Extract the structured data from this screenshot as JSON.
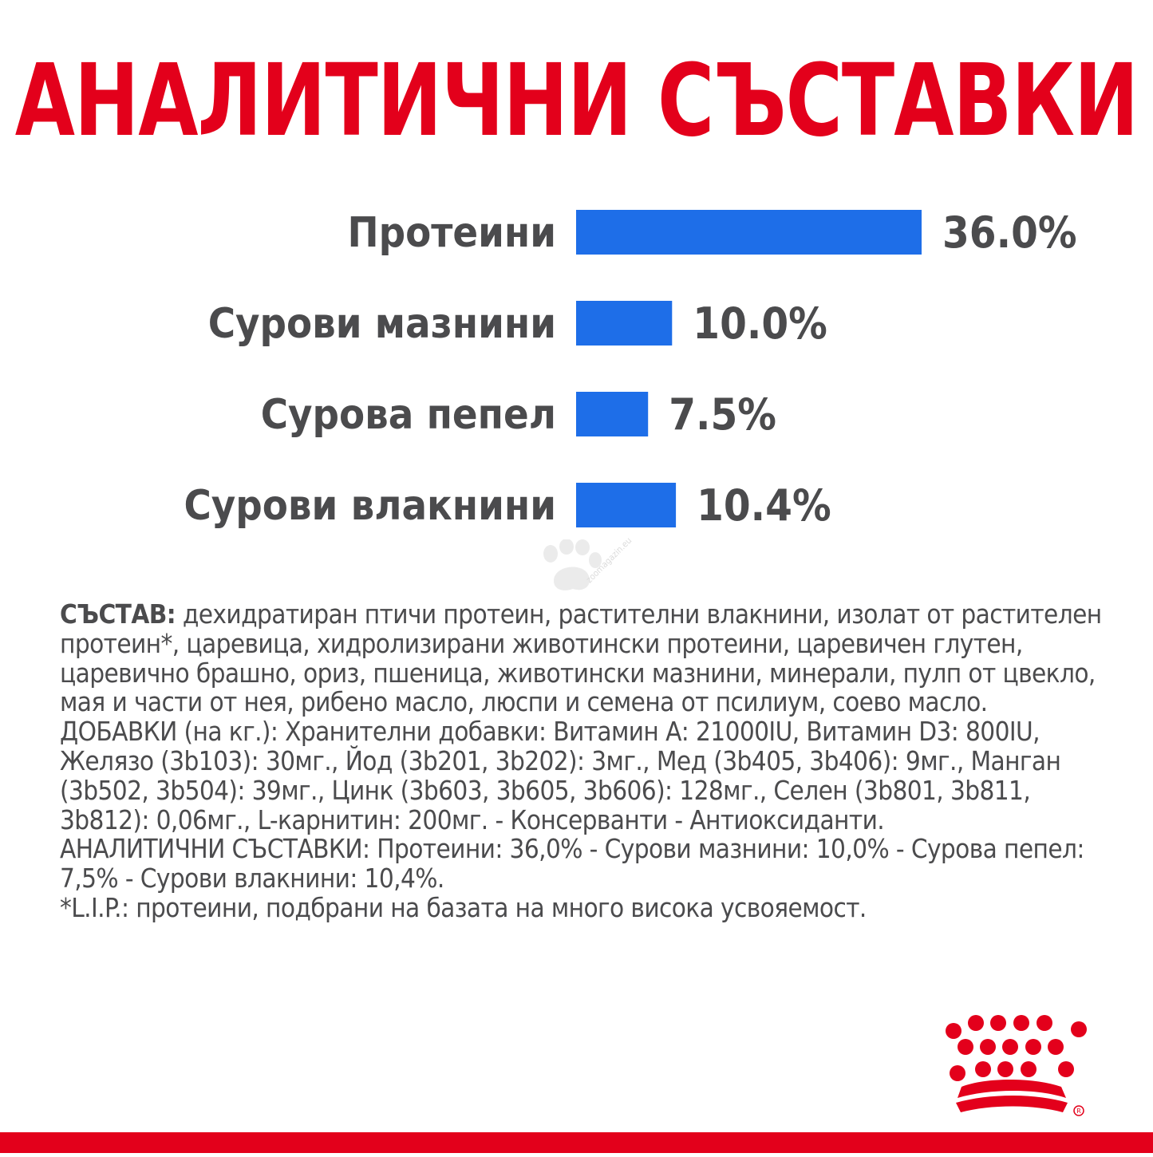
{
  "title": "АНАЛИТИЧНИ СЪСТАВКИ",
  "chart_data": {
    "type": "bar",
    "orientation": "horizontal",
    "categories": [
      "Протеини",
      "Сурови мазнини",
      "Сурова пепел",
      "Сурови влакнини"
    ],
    "values": [
      36.0,
      10.0,
      7.5,
      10.4
    ],
    "value_labels": [
      "36.0%",
      "10.0%",
      "7.5%",
      "10.4%"
    ],
    "unit": "%",
    "bar_color": "#1e6ee8",
    "label_color": "#4b4b4d",
    "xlim": [
      0,
      36.0
    ],
    "grid": false,
    "legend": "none"
  },
  "composition": {
    "heading": "СЪСТАВ:",
    "ingredients": " дехидратиран птичи протеин, растителни влакнини, изолат от растителен протеин*, царевица, хидролизирани животински протеини, царевичен глутен, царевично брашно, ориз, пшеница, животински мазнини, минерали, пулп от цвекло, мая и части от нея, рибено масло, люспи и семена от псилиум, соево масло.",
    "additives": "ДОБАВКИ (на кг.): Хранителни добавки: Витамин А: 21000IU, Витамин D3: 800IU, Желязо (3b103): 30мг., Йод (3b201, 3b202): 3мг., Мед (3b405, 3b406): 9мг., Манган (3b502, 3b504): 39мг., Цинк (3b603, 3b605, 3b606): 128мг., Селен (3b801, 3b811, 3b812): 0,06мг., L-карнитин: 200мг. - Консерванти - Антиоксиданти.",
    "analytical": "АНАЛИТИЧНИ СЪСТАВКИ: Протеини: 36,0% - Сурови мазнини: 10,0% - Сурова пепел: 7,5% - Сурови влакнини: 10,4%.",
    "footnote": "*L.I.P.: протеини, подбрани на базата на много висока усвояемост."
  },
  "watermark": {
    "text": "zoomagazin.eu",
    "icon": "paw-icon"
  },
  "logo": {
    "icon": "crown-logo-icon",
    "color": "#e3001b"
  },
  "accent_color": "#e3001b"
}
